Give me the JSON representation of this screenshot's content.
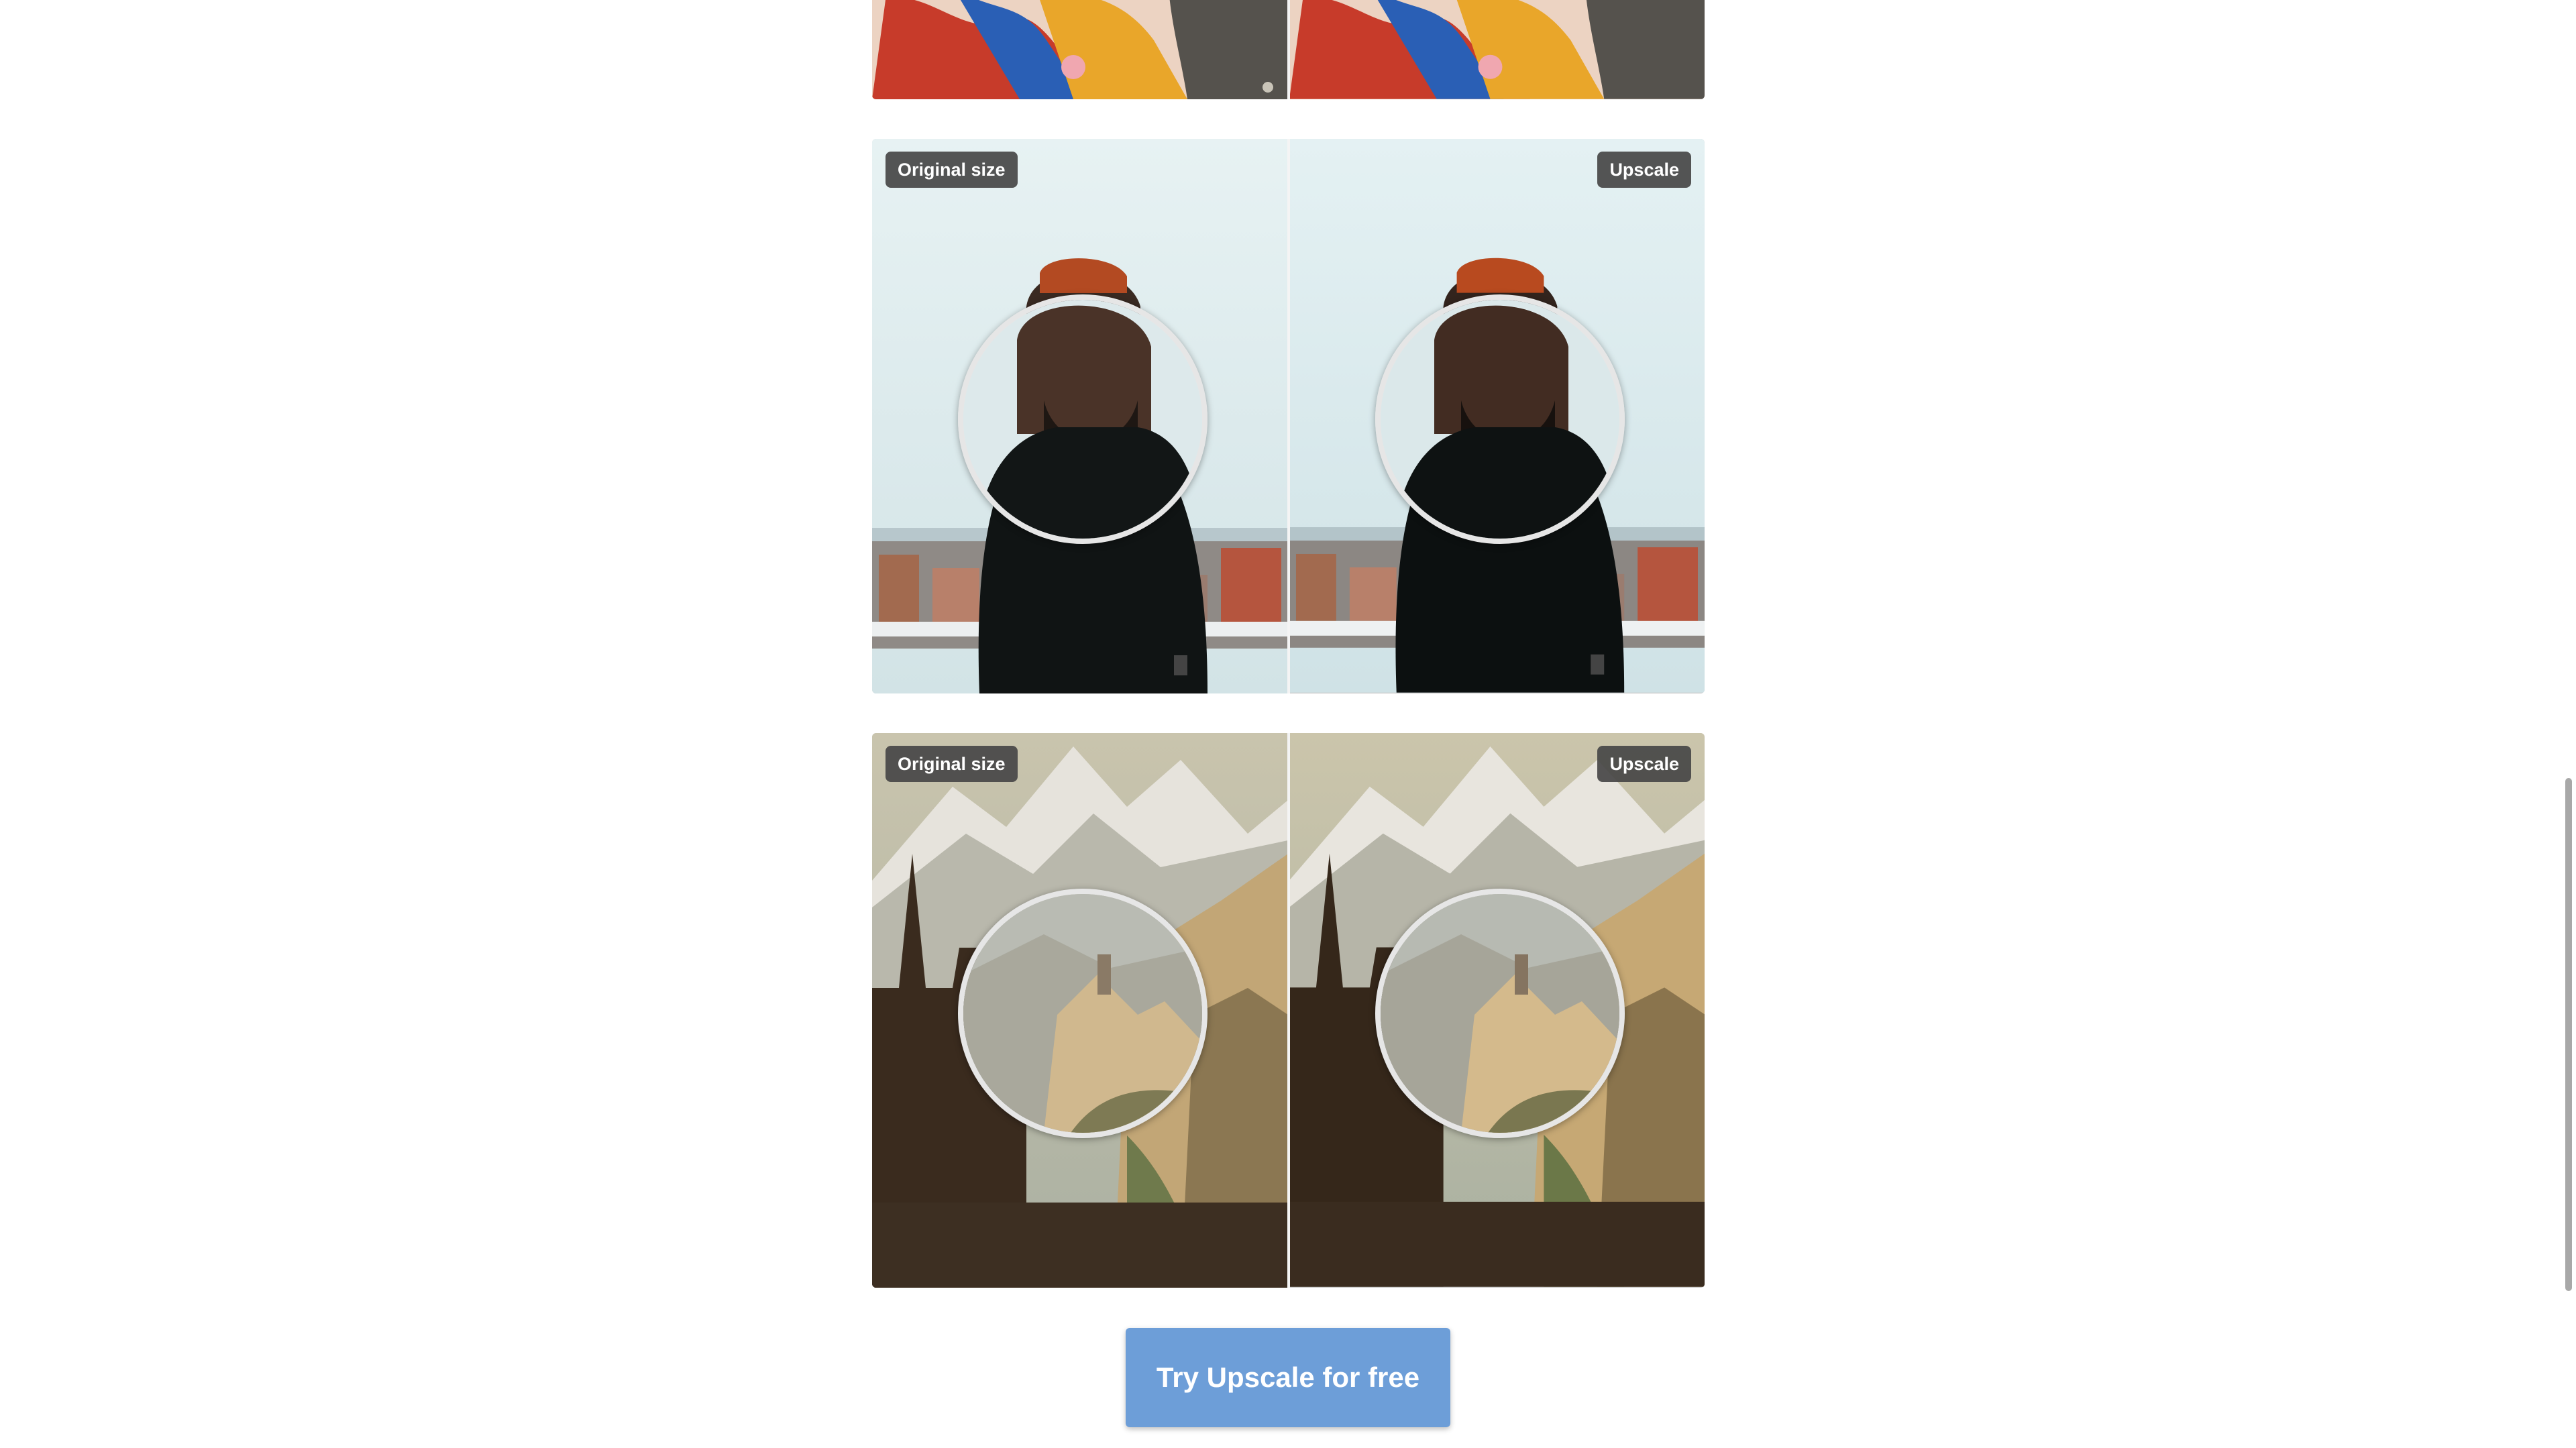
{
  "comparisons": [
    {
      "left_badge": "Original size",
      "right_badge": "Upscale"
    },
    {
      "left_badge": "Original size",
      "right_badge": "Upscale"
    }
  ],
  "cta": {
    "label": "Try Upscale for free"
  },
  "colors": {
    "badge_bg": "#464646",
    "cta_bg": "#6d9ed8",
    "scrollbar_thumb": "#a8a8a8"
  }
}
